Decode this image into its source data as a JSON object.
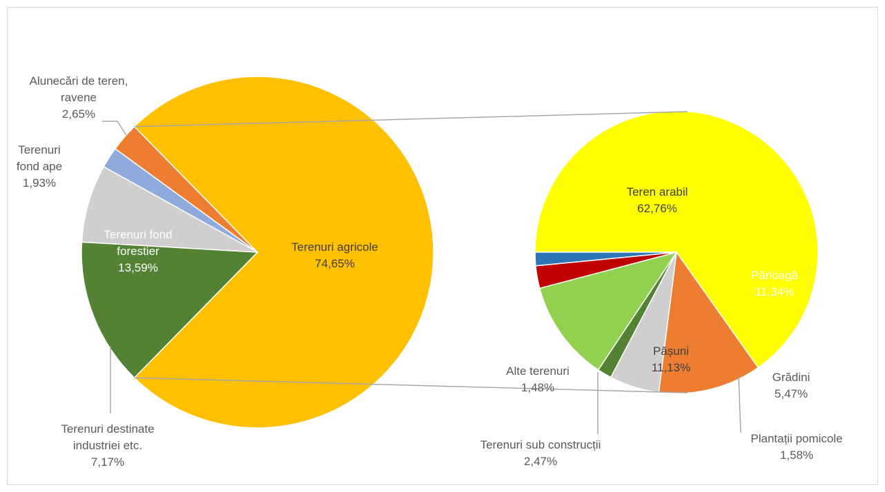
{
  "chart_data": [
    {
      "type": "pie",
      "title": "",
      "slices": [
        {
          "label_lines": [
            "Terenuri agricole"
          ],
          "value": 74.65,
          "value_text": "74,65%",
          "color": "#FFC000"
        },
        {
          "label_lines": [
            "Terenuri fond",
            "forestier"
          ],
          "value": 13.59,
          "value_text": "13,59%",
          "color": "#548235"
        },
        {
          "label_lines": [
            "Terenuri destinate",
            "industriei etc."
          ],
          "value": 7.17,
          "value_text": "7,17%",
          "color": "#D0CECE"
        },
        {
          "label_lines": [
            "Terenuri",
            "fond ape"
          ],
          "value": 1.93,
          "value_text": "1,93%",
          "color": "#8FAADC"
        },
        {
          "label_lines": [
            "Alunecări de teren,",
            "ravene"
          ],
          "value": 2.65,
          "value_text": "2,65%",
          "color": "#ED7D31"
        }
      ]
    },
    {
      "type": "pie",
      "title": "",
      "slices": [
        {
          "label_lines": [
            "Teren arabil"
          ],
          "value": 62.76,
          "value_text": "62,76%",
          "color": "#FFFF00"
        },
        {
          "label_lines": [
            "Pârloagă"
          ],
          "value": 11.34,
          "value_text": "11,34%",
          "color": "#ED7D31"
        },
        {
          "label_lines": [
            "Grădini"
          ],
          "value": 5.47,
          "value_text": "5,47%",
          "color": "#D0CECE"
        },
        {
          "label_lines": [
            "Plantații pomicole"
          ],
          "value": 1.58,
          "value_text": "1,58%",
          "color": "#548235"
        },
        {
          "label_lines": [
            "Pășuni"
          ],
          "value": 11.13,
          "value_text": "11,13%",
          "color": "#92D050"
        },
        {
          "label_lines": [
            "Terenuri sub construcții"
          ],
          "value": 2.47,
          "value_text": "2,47%",
          "color": "#C00000"
        },
        {
          "label_lines": [
            "Alte terenuri"
          ],
          "value": 1.48,
          "value_text": "1,48%",
          "color": "#2E75B6"
        }
      ]
    }
  ]
}
